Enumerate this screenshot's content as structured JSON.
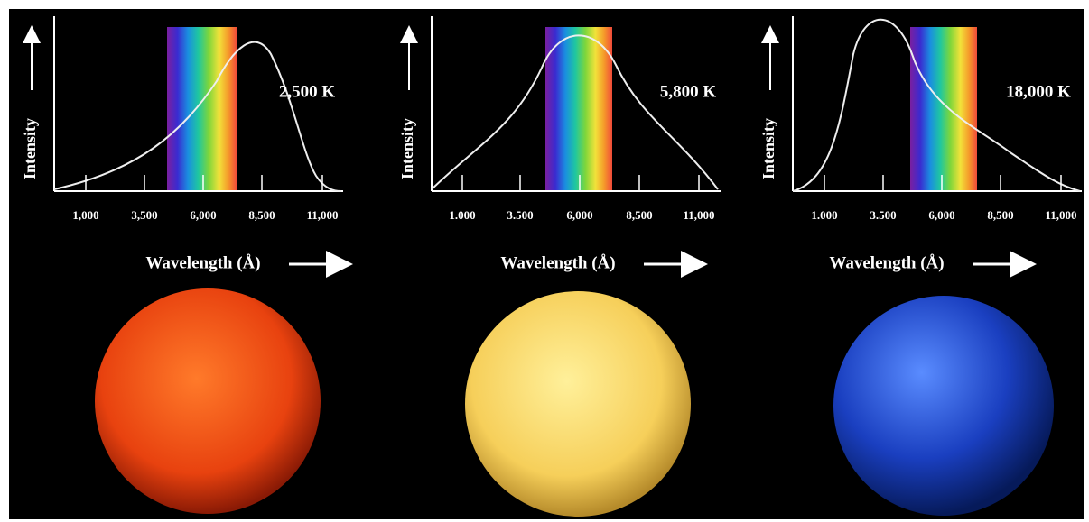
{
  "panels": [
    {
      "temperature": "2,500 K",
      "y_label": "Intensity",
      "x_label": "Wavelength (Å)",
      "ticks": [
        "1,000",
        "3,500",
        "6,000",
        "8,500",
        "11,000"
      ]
    },
    {
      "temperature": "5,800 K",
      "y_label": "Intensity",
      "x_label": "Wavelength (Å)",
      "ticks": [
        "1.000",
        "3.500",
        "6,000",
        "8,500",
        "11,000"
      ]
    },
    {
      "temperature": "18,000 K",
      "y_label": "Intensity",
      "x_label": "Wavelength (Å)",
      "ticks": [
        "1.000",
        "3.500",
        "6,000",
        "8,500",
        "11,000"
      ]
    }
  ]
}
